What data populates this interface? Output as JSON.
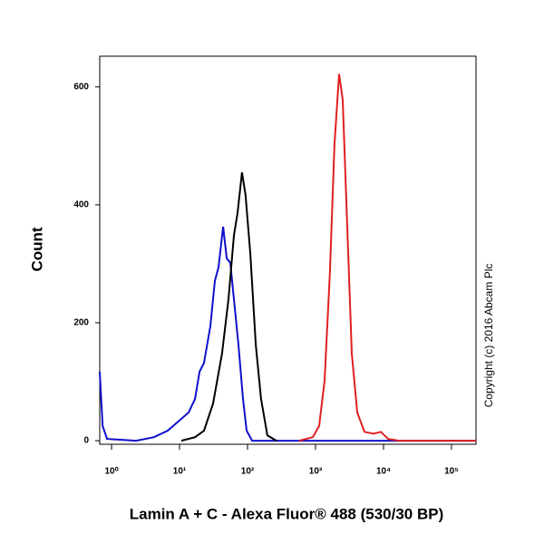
{
  "chart_data": {
    "type": "line",
    "xscale": "log",
    "xlabel": "Lamin A + C - Alexa Fluor® 488 (530/30 BP)",
    "ylabel": "Count",
    "annotation": "Copyright (c) 2016 Abcam Plc",
    "xlim": [
      0.67,
      229000
    ],
    "ylim": [
      -6,
      652
    ],
    "xticks": [
      {
        "value": 1,
        "label": "10⁰"
      },
      {
        "value": 10,
        "label": "10¹"
      },
      {
        "value": 100,
        "label": "10²"
      },
      {
        "value": 1000,
        "label": "10³"
      },
      {
        "value": 10000,
        "label": "10⁴"
      },
      {
        "value": 100000,
        "label": "10⁵"
      }
    ],
    "yticks": [
      0,
      200,
      400,
      600
    ],
    "series": [
      {
        "color": "#1010cc",
        "x": [
          0.67,
          0.74,
          0.86,
          2.3,
          4.2,
          6.7,
          10.6,
          13.6,
          16.9,
          19.7,
          22.9,
          28.4,
          33.1,
          37.4,
          43.7,
          49.4,
          55.8,
          63.1,
          73.6,
          85.8,
          97,
          117,
          423,
          229000
        ],
        "values": [
          117,
          25,
          3,
          0,
          6,
          17,
          37,
          48,
          71,
          117,
          132,
          194,
          271,
          294,
          363,
          309,
          302,
          240,
          163,
          71,
          17,
          0,
          0,
          0
        ]
      },
      {
        "color": "#000000",
        "x": [
          10.6,
          16.9,
          22.9,
          31.1,
          42.2,
          52.4,
          63.1,
          71.2,
          82.9,
          93.3,
          110,
          132,
          158,
          196,
          267
        ],
        "values": [
          0,
          6,
          17,
          63,
          148,
          240,
          348,
          386,
          455,
          417,
          317,
          163,
          71,
          9,
          0
        ]
      },
      {
        "color": "#e02020",
        "x": [
          575,
          912,
          1130,
          1360,
          1630,
          1900,
          2220,
          2510,
          2930,
          3410,
          4100,
          5250,
          7130,
          9120,
          11700,
          16900,
          229000
        ],
        "values": [
          0,
          6,
          25,
          102,
          286,
          502,
          622,
          578,
          363,
          148,
          48,
          15,
          12,
          15,
          3,
          0,
          0
        ]
      }
    ]
  }
}
